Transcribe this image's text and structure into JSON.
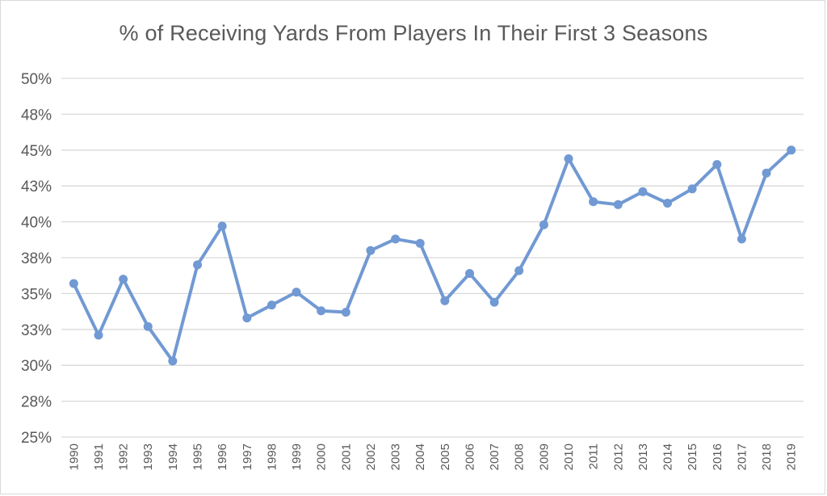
{
  "chart_data": {
    "type": "line",
    "title": "% of Receiving Yards From Players In Their First 3 Seasons",
    "xlabel": "",
    "ylabel": "",
    "ylim": [
      25,
      50
    ],
    "y_ticks": [
      "25%",
      "28%",
      "30%",
      "33%",
      "35%",
      "38%",
      "40%",
      "43%",
      "45%",
      "48%",
      "50%"
    ],
    "grid": true,
    "legend": "none",
    "line_color": "#7199d3",
    "categories": [
      "1990",
      "1991",
      "1992",
      "1993",
      "1994",
      "1995",
      "1996",
      "1997",
      "1998",
      "1999",
      "2000",
      "2001",
      "2002",
      "2003",
      "2004",
      "2005",
      "2006",
      "2007",
      "2008",
      "2009",
      "2010",
      "2011",
      "2012",
      "2013",
      "2014",
      "2015",
      "2016",
      "2017",
      "2018",
      "2019"
    ],
    "values": [
      35.7,
      32.1,
      36.0,
      32.7,
      30.3,
      37.0,
      39.7,
      33.3,
      34.2,
      35.1,
      33.8,
      33.7,
      38.0,
      38.8,
      38.5,
      34.5,
      36.4,
      34.4,
      36.6,
      39.8,
      44.4,
      41.4,
      41.2,
      42.1,
      41.3,
      42.3,
      44.0,
      38.8,
      43.4,
      45.0
    ]
  }
}
